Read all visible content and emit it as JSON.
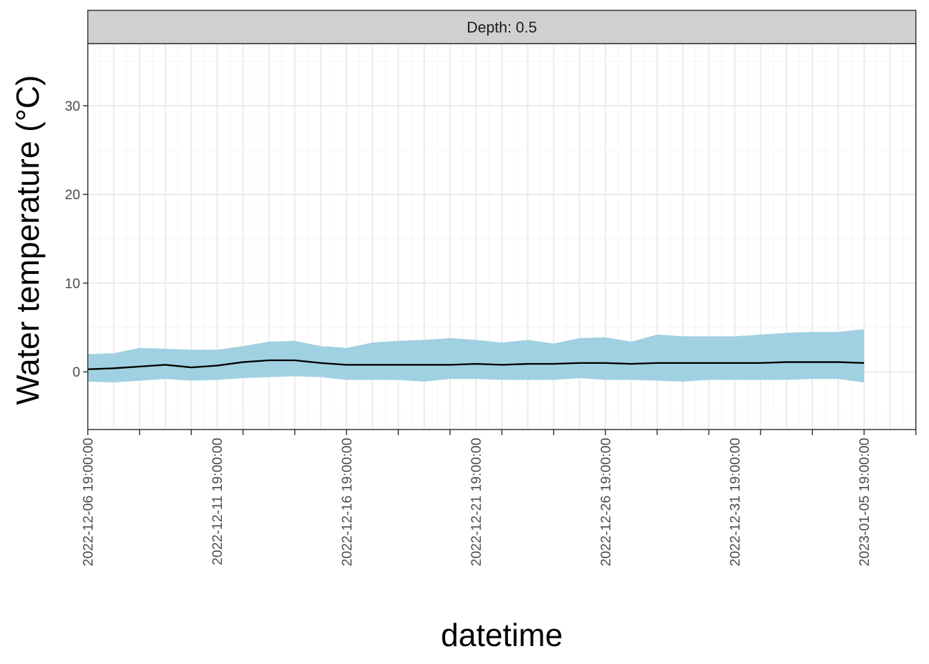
{
  "chart_data": {
    "type": "line",
    "facet_label": "Depth: 0.5",
    "xlabel": "datetime",
    "ylabel": "Water temperature (°C)",
    "ylim": [
      -6.5,
      37
    ],
    "y_ticks": [
      0,
      10,
      20,
      30
    ],
    "y_tick_labels": [
      "0",
      "10",
      "20",
      "30"
    ],
    "x_ticks": [
      "2022-12-06 19:00:00",
      "2022-12-11 19:00:00",
      "2022-12-16 19:00:00",
      "2022-12-21 19:00:00",
      "2022-12-26 19:00:00",
      "2022-12-31 19:00:00",
      "2023-01-05 19:00:00"
    ],
    "x_tick_labels": [
      "2022-12-06 19:00:00",
      "2022-12-11 19:00:00",
      "2022-12-16 19:00:00",
      "2022-12-21 19:00:00",
      "2022-12-26 19:00:00",
      "2022-12-31 19:00:00",
      "2023-01-05 19:00:00"
    ],
    "x_range": [
      "2022-12-06",
      "2023-01-07"
    ],
    "grid": true,
    "theme": "bw",
    "colors": {
      "band": "#a0d1e2",
      "line": "#000000",
      "strip": "#d0d0d0"
    },
    "x": [
      "2022-12-06",
      "2022-12-07",
      "2022-12-08",
      "2022-12-09",
      "2022-12-10",
      "2022-12-11",
      "2022-12-12",
      "2022-12-13",
      "2022-12-14",
      "2022-12-15",
      "2022-12-16",
      "2022-12-17",
      "2022-12-18",
      "2022-12-19",
      "2022-12-20",
      "2022-12-21",
      "2022-12-22",
      "2022-12-23",
      "2022-12-24",
      "2022-12-25",
      "2022-12-26",
      "2022-12-27",
      "2022-12-28",
      "2022-12-29",
      "2022-12-30",
      "2022-12-31",
      "2023-01-01",
      "2023-01-02",
      "2023-01-03",
      "2023-01-04",
      "2023-01-05"
    ],
    "series": [
      {
        "values": [
          0.3,
          0.4,
          0.6,
          0.8,
          0.5,
          0.7,
          1.1,
          1.3,
          1.3,
          1.0,
          0.8,
          0.8,
          0.8,
          0.8,
          0.8,
          0.9,
          0.8,
          0.9,
          0.9,
          1.0,
          1.0,
          0.9,
          1.0,
          1.0,
          1.0,
          1.0,
          1.0,
          1.1,
          1.1,
          1.1,
          1.0
        ]
      },
      {
        "type": "ribbon",
        "lower": [
          -1.1,
          -1.2,
          -1.0,
          -0.8,
          -1.0,
          -0.9,
          -0.7,
          -0.6,
          -0.5,
          -0.6,
          -0.9,
          -0.9,
          -0.9,
          -1.1,
          -0.8,
          -0.8,
          -0.9,
          -0.9,
          -0.9,
          -0.7,
          -0.9,
          -0.9,
          -1.0,
          -1.1,
          -0.9,
          -0.9,
          -0.9,
          -0.9,
          -0.8,
          -0.8,
          -1.2
        ],
        "upper": [
          2.0,
          2.1,
          2.7,
          2.6,
          2.5,
          2.5,
          2.9,
          3.4,
          3.5,
          2.9,
          2.7,
          3.3,
          3.5,
          3.6,
          3.8,
          3.6,
          3.3,
          3.6,
          3.2,
          3.8,
          3.9,
          3.4,
          4.2,
          4.0,
          4.0,
          4.0,
          4.2,
          4.4,
          4.5,
          4.5,
          4.8
        ]
      }
    ]
  }
}
